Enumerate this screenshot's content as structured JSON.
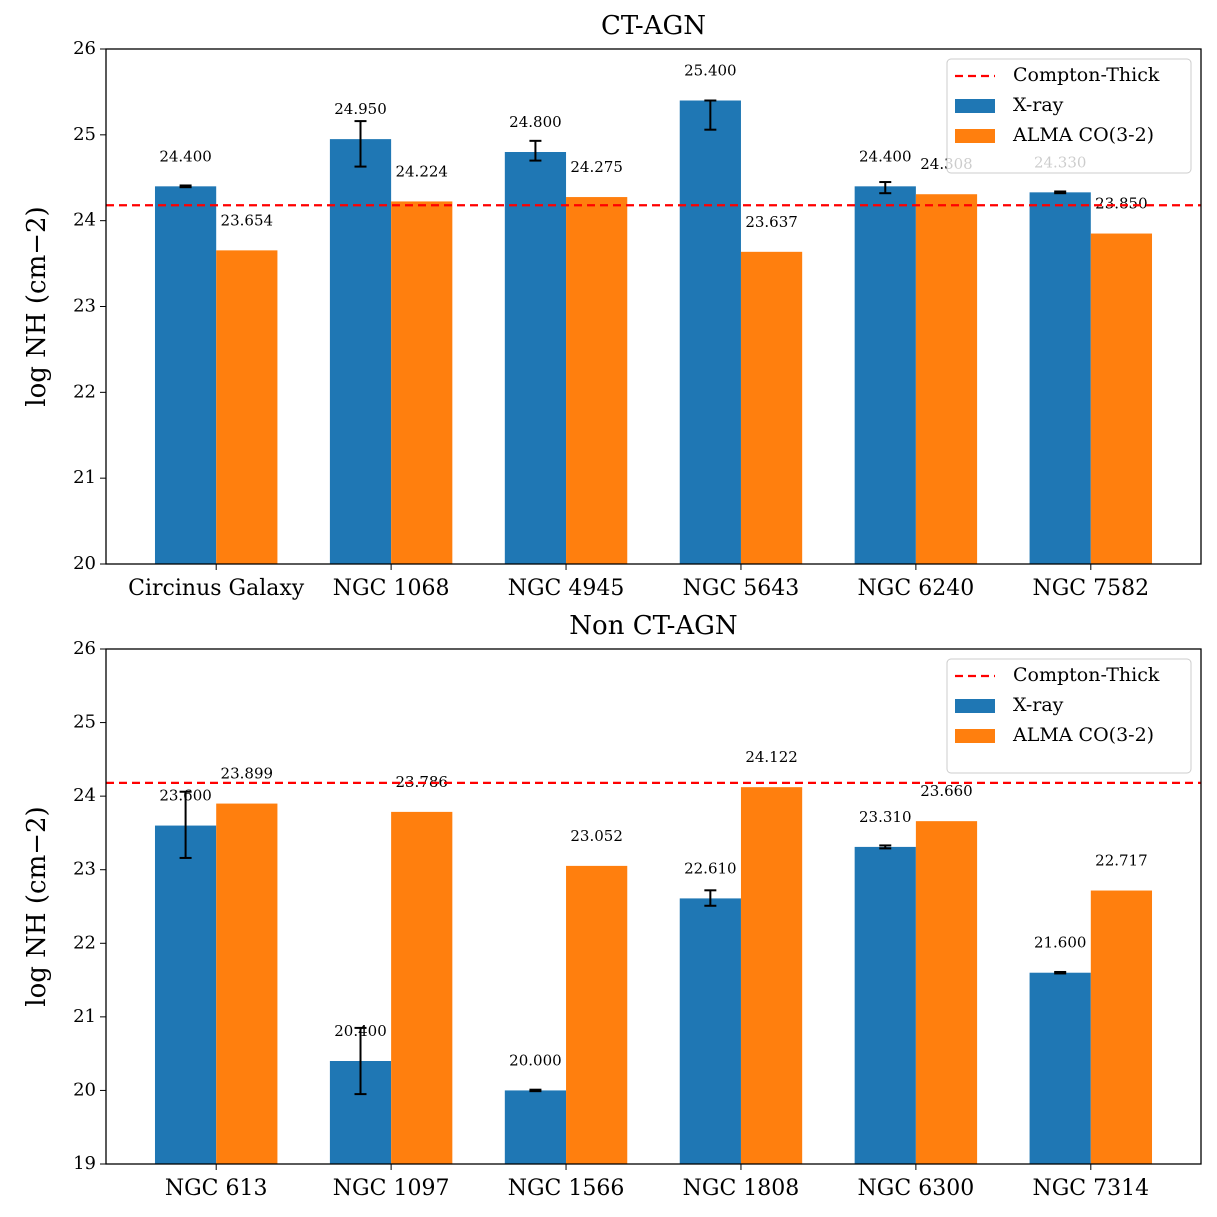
{
  "chart_data": [
    {
      "type": "bar",
      "title": "CT-AGN",
      "ylabel": "log NH (cm−2)",
      "categories": [
        "Circinus Galaxy",
        "NGC 1068",
        "NGC 4945",
        "NGC 5643",
        "NGC 6240",
        "NGC 7582"
      ],
      "series": [
        {
          "name": "X-ray",
          "color": "#1f77b4",
          "values": [
            24.4,
            24.95,
            24.8,
            25.4,
            24.4,
            24.33
          ],
          "value_labels": [
            "24.400",
            "24.950",
            "24.800",
            "25.400",
            "24.400",
            "24.330"
          ],
          "errors": [
            [
              0.01,
              0.01
            ],
            [
              0.32,
              0.21
            ],
            [
              0.1,
              0.13
            ],
            [
              0.34,
              0
            ],
            [
              0.08,
              0.05
            ],
            [
              0.01,
              0.01
            ]
          ]
        },
        {
          "name": "ALMA CO(3-2)",
          "color": "#ff7f0e",
          "values": [
            23.654,
            24.224,
            24.275,
            23.637,
            24.308,
            23.85
          ],
          "value_labels": [
            "23.654",
            "24.224",
            "24.275",
            "23.637",
            "24.308",
            "23.850"
          ]
        }
      ],
      "hline": {
        "name": "Compton-Thick",
        "value": 24.18,
        "color": "#ff0000"
      },
      "ylim": [
        20,
        26
      ],
      "yticks": [
        20,
        21,
        22,
        23,
        24,
        25,
        26
      ],
      "legend": "upper right"
    },
    {
      "type": "bar",
      "title": "Non CT-AGN",
      "ylabel": "log NH (cm−2)",
      "categories": [
        "NGC 613",
        "NGC 1097",
        "NGC 1566",
        "NGC 1808",
        "NGC 6300",
        "NGC 7314"
      ],
      "series": [
        {
          "name": "X-ray",
          "color": "#1f77b4",
          "values": [
            23.6,
            20.4,
            20.0,
            22.61,
            23.31,
            21.6
          ],
          "value_labels": [
            "23.600",
            "20.400",
            "20.000",
            "22.610",
            "23.310",
            "21.600"
          ],
          "errors": [
            [
              0.44,
              0.46
            ],
            [
              0.45,
              0.45
            ],
            [
              0.01,
              0.01
            ],
            [
              0.1,
              0.11
            ],
            [
              0.02,
              0.02
            ],
            [
              0.01,
              0.01
            ]
          ]
        },
        {
          "name": "ALMA CO(3-2)",
          "color": "#ff7f0e",
          "values": [
            23.899,
            23.786,
            23.052,
            24.122,
            23.66,
            22.717
          ],
          "value_labels": [
            "23.899",
            "23.786",
            "23.052",
            "24.122",
            "23.660",
            "22.717"
          ]
        }
      ],
      "hline": {
        "name": "Compton-Thick",
        "value": 24.18,
        "color": "#ff0000"
      },
      "ylim": [
        19,
        26
      ],
      "yticks": [
        19,
        20,
        21,
        22,
        23,
        24,
        25,
        26
      ],
      "legend": "upper right"
    }
  ]
}
